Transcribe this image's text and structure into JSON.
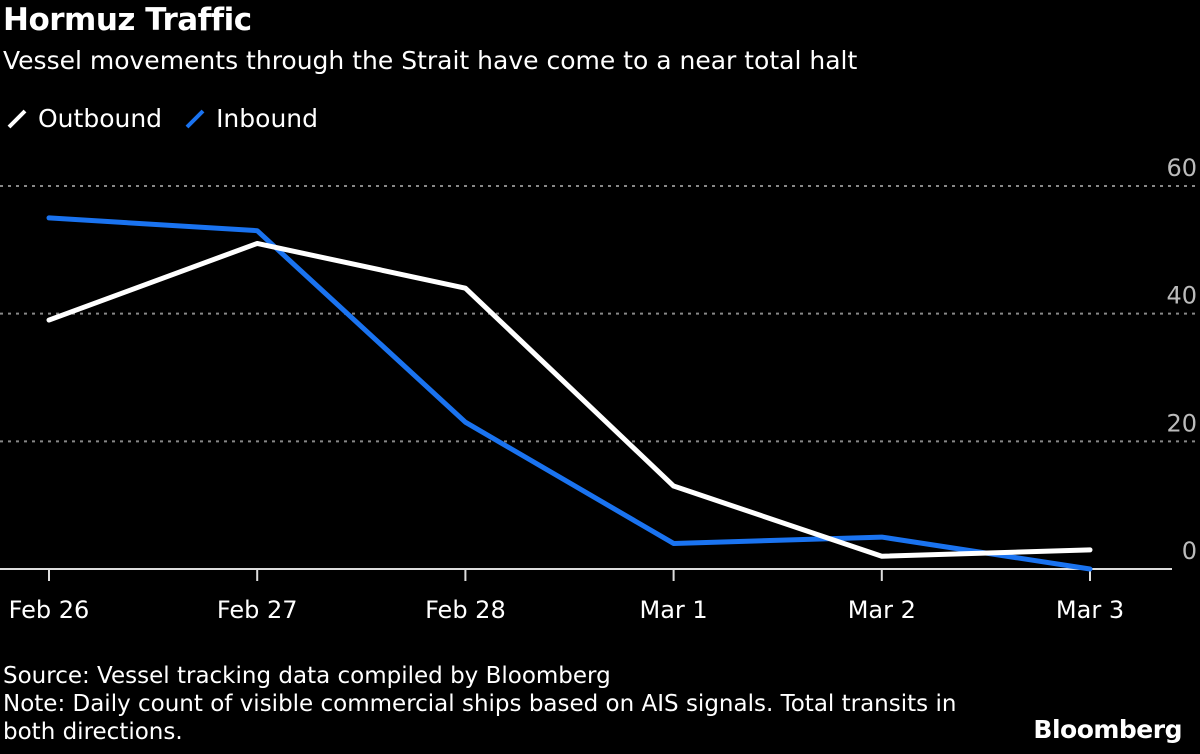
{
  "chart_data": {
    "type": "line",
    "title": "Hormuz Traffic",
    "subtitle": "Vessel movements through the Strait have come to a near total halt",
    "categories": [
      "Feb 26",
      "Feb 27",
      "Feb 28",
      "Mar 1",
      "Mar 2",
      "Mar 3"
    ],
    "series": [
      {
        "name": "Outbound",
        "color": "#ffffff",
        "values": [
          39,
          51,
          44,
          13,
          2,
          3
        ]
      },
      {
        "name": "Inbound",
        "color": "#1a73f0",
        "values": [
          55,
          53,
          23,
          4,
          5,
          0
        ]
      }
    ],
    "ylim": [
      0,
      60
    ],
    "yticks": [
      "0",
      "20",
      "40",
      "60"
    ],
    "ytick_values": [
      0,
      20,
      40,
      60
    ],
    "y_axis_side": "right",
    "grid": "horizontal dotted",
    "legend_position": "top-left",
    "xlabel": "",
    "ylabel": ""
  },
  "footer": {
    "source": "Source: Vessel tracking data compiled by Bloomberg",
    "note": "Note: Daily count of visible commercial ships based on AIS signals. Total transits in both directions.",
    "logo": "Bloomberg"
  }
}
